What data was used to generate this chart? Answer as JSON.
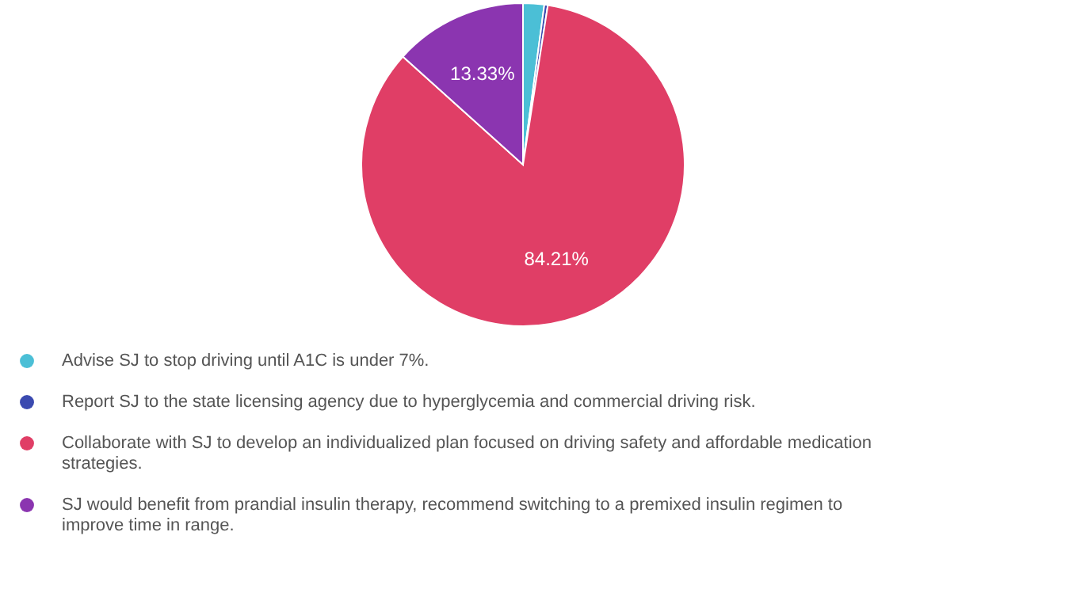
{
  "chart_data": {
    "type": "pie",
    "categories": [
      "Advise SJ to stop driving until A1C is under 7%.",
      "Report SJ to the state licensing agency due to hyperglycemia and commercial driving risk.",
      "Collaborate with SJ to develop an individualized plan focused on driving safety and affordable medication strategies.",
      "SJ would benefit from prandial insulin therapy, recommend switching to a premixed insulin regimen to improve time in range."
    ],
    "values": [
      2.11,
      0.35,
      84.21,
      13.33
    ],
    "colors": [
      "#4bbfd6",
      "#3b4ab0",
      "#e03e66",
      "#8b35b0"
    ],
    "value_labels": [
      null,
      null,
      "84.21%",
      "13.33%"
    ],
    "legend": "bottom"
  }
}
